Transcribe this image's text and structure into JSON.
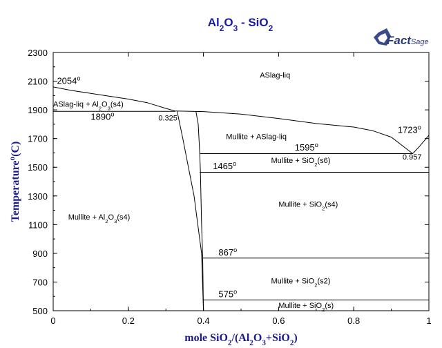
{
  "title": {
    "parts": [
      {
        "t": "Al"
      },
      {
        "t": "2",
        "sub": true
      },
      {
        "t": "O"
      },
      {
        "t": "3",
        "sub": true
      },
      {
        "t": " - SiO"
      },
      {
        "t": "2",
        "sub": true
      }
    ]
  },
  "logo": {
    "main": "Fact",
    "suffix": "Sage"
  },
  "chart_data": {
    "type": "phase_diagram",
    "x_axis": {
      "label": [
        {
          "t": "mole SiO"
        },
        {
          "t": "2",
          "sub": true
        },
        {
          "t": "/(Al"
        },
        {
          "t": "2",
          "sub": true
        },
        {
          "t": "O"
        },
        {
          "t": "3",
          "sub": true
        },
        {
          "t": "+SiO"
        },
        {
          "t": "2",
          "sub": true
        },
        {
          "t": ")"
        }
      ],
      "range": [
        0,
        1
      ],
      "ticks": [
        "0",
        "0.2",
        "0.4",
        "0.6",
        "0.8",
        "1"
      ]
    },
    "y_axis": {
      "label": [
        {
          "t": "Temperature"
        },
        {
          "t": "o",
          "sup": true
        },
        {
          "t": "(C)"
        }
      ],
      "range": [
        500,
        2300
      ],
      "ticks": [
        "500",
        "700",
        "900",
        "1100",
        "1300",
        "1500",
        "1700",
        "1900",
        "2100",
        "2300"
      ]
    },
    "regions": [
      {
        "label": [
          {
            "t": "ASlag-liq"
          }
        ],
        "x": 0.55,
        "y": 2125
      },
      {
        "label": [
          {
            "t": "ASlag-liq + Al"
          },
          {
            "t": "2",
            "sub": true
          },
          {
            "t": "O"
          },
          {
            "t": "3",
            "sub": true
          },
          {
            "t": "(s4)"
          }
        ],
        "x": 0.0,
        "y": 1923
      },
      {
        "label": [
          {
            "t": "Mullite + ASlag-liq"
          }
        ],
        "x": 0.46,
        "y": 1695
      },
      {
        "label": [
          {
            "t": "Mullite + SiO"
          },
          {
            "t": "2",
            "sub": true
          },
          {
            "t": "(s6)"
          }
        ],
        "x": 0.58,
        "y": 1530
      },
      {
        "label": [
          {
            "t": "Mullite + SiO"
          },
          {
            "t": "2",
            "sub": true
          },
          {
            "t": "(s4)"
          }
        ],
        "x": 0.6,
        "y": 1225
      },
      {
        "label": [
          {
            "t": "Mullite + Al"
          },
          {
            "t": "2",
            "sub": true
          },
          {
            "t": "O"
          },
          {
            "t": "3",
            "sub": true
          },
          {
            "t": "(s4)"
          }
        ],
        "x": 0.04,
        "y": 1135
      },
      {
        "label": [
          {
            "t": "Mullite + SiO"
          },
          {
            "t": "2",
            "sub": true
          },
          {
            "t": "(s2)"
          }
        ],
        "x": 0.58,
        "y": 690
      },
      {
        "label": [
          {
            "t": "Mullite + SiO"
          },
          {
            "t": "2",
            "sub": true
          },
          {
            "t": "(s)"
          }
        ],
        "x": 0.6,
        "y": 520
      }
    ],
    "temperature_labels": [
      {
        "value": "2054",
        "x": 0.01,
        "y": 2080
      },
      {
        "value": "1890",
        "x": 0.1,
        "y": 1830
      },
      {
        "value": "1723",
        "x": 0.917,
        "y": 1740
      },
      {
        "value": "1595",
        "x": 0.643,
        "y": 1617
      },
      {
        "value": "1465",
        "x": 0.425,
        "y": 1487
      },
      {
        "value": "867",
        "x": 0.44,
        "y": 885
      },
      {
        "value": "575",
        "x": 0.44,
        "y": 595
      }
    ],
    "composition_labels": [
      {
        "value": "0.325",
        "x": 0.28,
        "y": 1825
      },
      {
        "value": "0.957",
        "x": 0.93,
        "y": 1555
      }
    ],
    "isotherms": [
      {
        "T": 1890,
        "x": [
          0,
          0.325
        ]
      },
      {
        "T": 1595,
        "x": [
          0.39,
          0.957
        ]
      },
      {
        "T": 1465,
        "x": [
          0.39,
          1
        ]
      },
      {
        "T": 867,
        "x": [
          0.398,
          1
        ]
      },
      {
        "T": 575,
        "x": [
          0.4,
          1
        ]
      }
    ],
    "liquidus_left": {
      "x": [
        0,
        0.05,
        0.1,
        0.15,
        0.2,
        0.25,
        0.3,
        0.325
      ],
      "T": [
        2060,
        2035,
        2015,
        1995,
        1975,
        1950,
        1910,
        1892
      ]
    },
    "liquidus_right": {
      "x": [
        0.325,
        0.4,
        0.5,
        0.6,
        0.7,
        0.8,
        0.85,
        0.9,
        0.957
      ],
      "T": [
        1892,
        1888,
        1870,
        1840,
        1805,
        1780,
        1755,
        1710,
        1595
      ]
    },
    "liquidus_cristobalite": {
      "x": [
        0.957,
        0.975,
        1.0
      ],
      "T": [
        1595,
        1645,
        1723
      ]
    },
    "mullite_left": {
      "x": [
        0.33,
        0.345,
        0.36,
        0.375,
        0.385,
        0.395,
        0.4
      ],
      "T": [
        1890,
        1700,
        1500,
        1300,
        1100,
        900,
        500
      ]
    },
    "mullite_right": {
      "x": [
        0.38,
        0.386,
        0.39,
        0.392,
        0.395,
        0.398,
        0.4
      ],
      "T": [
        1890,
        1800,
        1600,
        1465,
        1100,
        867,
        500
      ]
    }
  }
}
